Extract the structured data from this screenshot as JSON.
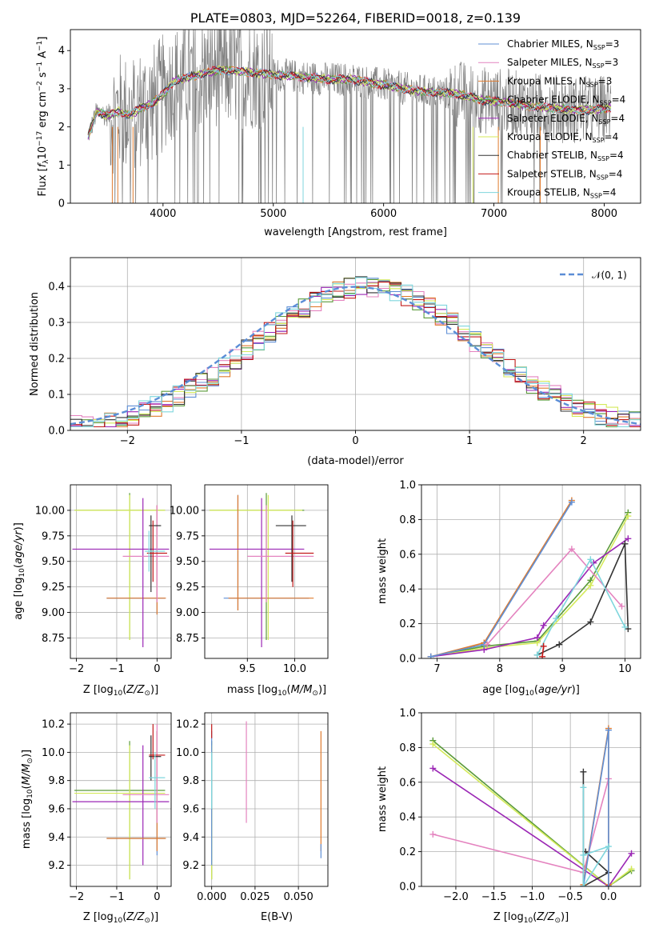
{
  "chart_data": [
    {
      "type": "line",
      "title": "PLATE=0803, MJD=52264, FIBERID=0018, z=0.139",
      "xlabel": "wavelength [Angstrom, rest frame]",
      "ylabel": "Flux [f_λ 10^-17 erg cm^-2 s^-1 A^-1]",
      "xlim": [
        3160,
        8330
      ],
      "ylim": [
        0,
        4.55
      ],
      "xticks": [
        "4000",
        "5000",
        "6000",
        "7000",
        "8000"
      ],
      "yticks": [
        "0",
        "1",
        "2",
        "3",
        "4"
      ],
      "grid": false,
      "legend_position": "right",
      "series": [
        {
          "name": "Chabrier MILES, N_SSP=3",
          "color": "#5f8fd6"
        },
        {
          "name": "Salpeter MILES, N_SSP=3",
          "color": "#e483bf"
        },
        {
          "name": "Kroupa MILES, N_SSP=3",
          "color": "#e07b2e"
        },
        {
          "name": "Chabrier ELODIE, N_SSP=4",
          "color": "#5a9a3a"
        },
        {
          "name": "Salpeter ELODIE, N_SSP=4",
          "color": "#9b27b5"
        },
        {
          "name": "Kroupa ELODIE, N_SSP=4",
          "color": "#d4ea5a"
        },
        {
          "name": "Chabrier STELIB, N_SSP=4",
          "color": "#333333"
        },
        {
          "name": "Salpeter STELIB, N_SSP=4",
          "color": "#c21a1a"
        },
        {
          "name": "Kroupa STELIB, N_SSP=4",
          "color": "#7fd6dd"
        }
      ],
      "data_color": "#808080",
      "continuum": {
        "x": [
          3320,
          3400,
          3500,
          3600,
          3700,
          3800,
          3900,
          4000,
          4100,
          4300,
          4500,
          4700,
          4900,
          5100,
          5300,
          5500,
          5700,
          5900,
          6100,
          6300,
          6500,
          6700,
          6900,
          7100,
          7300,
          7500,
          7700,
          7900,
          8050
        ],
        "y": [
          1.75,
          2.4,
          2.3,
          2.4,
          2.3,
          2.5,
          2.6,
          2.85,
          3.2,
          3.35,
          3.5,
          3.45,
          3.4,
          3.35,
          3.3,
          3.25,
          3.25,
          3.15,
          3.05,
          2.95,
          2.9,
          2.85,
          2.7,
          2.65,
          2.55,
          2.5,
          2.45,
          2.45,
          2.5
        ]
      }
    },
    {
      "type": "histogram",
      "xlabel": "(data-model)/error",
      "ylabel": "Normed distribution",
      "xlim": [
        -2.5,
        2.5
      ],
      "ylim": [
        0,
        0.48
      ],
      "xticks": [
        "−2",
        "−1",
        "0",
        "1",
        "2"
      ],
      "yticks": [
        "0.0",
        "0.1",
        "0.2",
        "0.3",
        "0.4"
      ],
      "grid": true,
      "legend_position": "top-right",
      "reference": {
        "name": "𝒩(0, 1)",
        "mean": 0,
        "sigma": 1,
        "color": "#5b8dd6"
      },
      "bin_width": 0.1
    },
    {
      "type": "scatter",
      "xlabel": "Z [log10(Z/Z⊙)]",
      "ylabel": "age  [log10(age/yr)]",
      "xlim": [
        -2.15,
        0.35
      ],
      "ylim": [
        8.55,
        10.25
      ],
      "xticks": [
        "−2",
        "−1",
        "0"
      ],
      "yticks": [
        "8.75",
        "9.00",
        "9.25",
        "9.50",
        "9.75",
        "10.00"
      ],
      "grid": true,
      "points": [
        {
          "color": "#5a9a3a",
          "z": -0.68,
          "age": 10.0,
          "zerr": [
            -2.05,
            0.2
          ],
          "ageerr": [
            8.73,
            10.17
          ]
        },
        {
          "color": "#d4ea5a",
          "z": -0.68,
          "age": 10.0,
          "zerr": [
            -2.05,
            0.2
          ],
          "ageerr": [
            8.73,
            10.15
          ]
        },
        {
          "color": "#5f8fd6",
          "z": 0.0,
          "age": 9.14,
          "zerr": [
            -1.25,
            0.2
          ],
          "ageerr": [
            8.98,
            10.05
          ]
        },
        {
          "color": "#e07b2e",
          "z": 0.0,
          "age": 9.14,
          "zerr": [
            -1.25,
            0.22
          ],
          "ageerr": [
            8.98,
            10.05
          ]
        },
        {
          "color": "#9b27b5",
          "z": -0.35,
          "age": 9.62,
          "zerr": [
            -2.1,
            0.3
          ],
          "ageerr": [
            8.66,
            10.12
          ]
        },
        {
          "color": "#e483bf",
          "z": 0.0,
          "age": 9.55,
          "zerr": [
            -0.85,
            0.3
          ],
          "ageerr": [
            9.1,
            10.05
          ]
        },
        {
          "color": "#333333",
          "z": -0.15,
          "age": 9.85,
          "zerr": [
            -0.2,
            0.1
          ],
          "ageerr": [
            9.2,
            9.95
          ]
        },
        {
          "color": "#c21a1a",
          "z": -0.1,
          "age": 9.58,
          "zerr": [
            -0.25,
            0.25
          ],
          "ageerr": [
            9.3,
            9.9
          ]
        },
        {
          "color": "#7fd6dd",
          "z": -0.2,
          "age": 9.6,
          "zerr": [
            -0.3,
            0.2
          ],
          "ageerr": [
            9.4,
            9.8
          ]
        }
      ]
    },
    {
      "type": "scatter",
      "xlabel": "mass [log10(M/M⊙)]",
      "ylabel": "",
      "xlim": [
        9.05,
        10.35
      ],
      "ylim": [
        8.55,
        10.25
      ],
      "xticks": [
        "9.5",
        "10.0"
      ],
      "yticks": [
        "8.75",
        "9.00",
        "9.25",
        "9.50",
        "9.75",
        "10.00"
      ],
      "grid": true,
      "points": [
        {
          "color": "#5a9a3a",
          "m": 9.7,
          "age": 10.0,
          "merr": [
            9.1,
            10.1
          ],
          "ageerr": [
            8.73,
            10.17
          ]
        },
        {
          "color": "#d4ea5a",
          "m": 9.72,
          "age": 10.0,
          "merr": [
            9.1,
            10.08
          ],
          "ageerr": [
            8.73,
            10.15
          ]
        },
        {
          "color": "#5f8fd6",
          "m": 9.4,
          "age": 9.14,
          "merr": [
            9.25,
            10.15
          ],
          "ageerr": [
            9.02,
            10.15
          ]
        },
        {
          "color": "#e07b2e",
          "m": 9.4,
          "age": 9.14,
          "merr": [
            9.3,
            10.2
          ],
          "ageerr": [
            9.02,
            10.15
          ]
        },
        {
          "color": "#9b27b5",
          "m": 9.65,
          "age": 9.62,
          "merr": [
            9.1,
            10.1
          ],
          "ageerr": [
            8.66,
            10.12
          ]
        },
        {
          "color": "#e483bf",
          "m": 9.7,
          "age": 9.55,
          "merr": [
            9.5,
            10.2
          ],
          "ageerr": [
            9.1,
            10.05
          ]
        },
        {
          "color": "#333333",
          "m": 9.97,
          "age": 9.85,
          "merr": [
            9.8,
            10.12
          ],
          "ageerr": [
            9.3,
            9.95
          ]
        },
        {
          "color": "#c21a1a",
          "m": 9.98,
          "age": 9.58,
          "merr": [
            9.9,
            10.2
          ],
          "ageerr": [
            9.25,
            9.9
          ]
        }
      ]
    },
    {
      "type": "line",
      "xlabel": "age  [log10(age/yr)]",
      "ylabel": "mass weight",
      "xlim": [
        6.75,
        10.25
      ],
      "ylim": [
        0,
        1.0
      ],
      "xticks": [
        "7",
        "8",
        "9",
        "10"
      ],
      "yticks": [
        "0.0",
        "0.2",
        "0.4",
        "0.6",
        "0.8",
        "1.0"
      ],
      "grid": true,
      "series": [
        {
          "color": "#5a9a3a",
          "x": [
            6.9,
            7.75,
            8.6,
            9.45,
            10.05
          ],
          "y": [
            0.01,
            0.07,
            0.1,
            0.45,
            0.84
          ]
        },
        {
          "color": "#d4ea5a",
          "x": [
            6.9,
            7.75,
            8.6,
            9.45,
            10.05
          ],
          "y": [
            0.01,
            0.06,
            0.09,
            0.42,
            0.82
          ]
        },
        {
          "color": "#9b27b5",
          "x": [
            6.9,
            7.75,
            8.6,
            8.7,
            9.5,
            10.05
          ],
          "y": [
            0.01,
            0.05,
            0.12,
            0.19,
            0.55,
            0.69
          ]
        },
        {
          "color": "#e07b2e",
          "x": [
            6.9,
            7.75,
            9.15
          ],
          "y": [
            0.01,
            0.09,
            0.91
          ]
        },
        {
          "color": "#5f8fd6",
          "x": [
            6.9,
            7.75,
            9.15
          ],
          "y": [
            0.01,
            0.08,
            0.9
          ]
        },
        {
          "color": "#e483bf",
          "x": [
            7.8,
            9.15,
            9.95
          ],
          "y": [
            0.08,
            0.63,
            0.3
          ]
        },
        {
          "color": "#333333",
          "x": [
            8.6,
            8.95,
            9.45,
            10.0,
            10.05
          ],
          "y": [
            0.02,
            0.08,
            0.21,
            0.66,
            0.17
          ]
        },
        {
          "color": "#7fd6dd",
          "x": [
            8.6,
            8.9,
            9.45,
            10.0
          ],
          "y": [
            0.02,
            0.23,
            0.57,
            0.18
          ]
        },
        {
          "color": "#c21a1a",
          "x": [
            8.68,
            8.7
          ],
          "y": [
            0.01,
            0.07
          ]
        }
      ]
    },
    {
      "type": "scatter",
      "xlabel": "Z [log10(Z/Z⊙)]",
      "ylabel": "mass [log10(M/M⊙)]",
      "xlim": [
        -2.15,
        0.35
      ],
      "ylim": [
        9.05,
        10.28
      ],
      "xticks": [
        "−2",
        "−1",
        "0"
      ],
      "yticks": [
        "9.2",
        "9.4",
        "9.6",
        "9.8",
        "10.0",
        "10.2"
      ],
      "grid": true,
      "points": [
        {
          "color": "#5a9a3a",
          "z": -0.68,
          "m": 9.73,
          "zerr": [
            -2.05,
            0.2
          ],
          "merr": [
            9.1,
            10.08
          ]
        },
        {
          "color": "#d4ea5a",
          "z": -0.68,
          "m": 9.71,
          "zerr": [
            -2.05,
            0.2
          ],
          "merr": [
            9.1,
            10.05
          ]
        },
        {
          "color": "#9b27b5",
          "z": -0.35,
          "m": 9.65,
          "zerr": [
            -2.1,
            0.3
          ],
          "merr": [
            9.2,
            10.05
          ]
        },
        {
          "color": "#5f8fd6",
          "z": 0.0,
          "m": 9.39,
          "zerr": [
            -1.25,
            0.2
          ],
          "merr": [
            9.27,
            10.15
          ]
        },
        {
          "color": "#e07b2e",
          "z": 0.0,
          "m": 9.39,
          "zerr": [
            -1.25,
            0.22
          ],
          "merr": [
            9.3,
            10.15
          ]
        },
        {
          "color": "#e483bf",
          "z": 0.0,
          "m": 9.7,
          "zerr": [
            -0.85,
            0.3
          ],
          "merr": [
            9.5,
            10.2
          ]
        },
        {
          "color": "#333333",
          "z": -0.15,
          "m": 9.97,
          "zerr": [
            -0.2,
            0.1
          ],
          "merr": [
            9.8,
            10.12
          ]
        },
        {
          "color": "#c21a1a",
          "z": -0.1,
          "m": 9.98,
          "zerr": [
            -0.2,
            0.2
          ],
          "merr": [
            9.95,
            10.2
          ]
        },
        {
          "color": "#7fd6dd",
          "z": -0.05,
          "m": 9.82,
          "zerr": [
            -0.2,
            0.2
          ],
          "merr": [
            9.6,
            10.0
          ]
        }
      ]
    },
    {
      "type": "scatter",
      "xlabel": "E(B-V)",
      "ylabel": "",
      "xlim": [
        -0.004,
        0.067
      ],
      "ylim": [
        9.05,
        10.28
      ],
      "xticks": [
        "0.000",
        "0.025",
        "0.050"
      ],
      "yticks": [
        "9.2",
        "9.4",
        "9.6",
        "9.8",
        "10.0",
        "10.2"
      ],
      "grid": true,
      "points": [
        {
          "color": "#5a9a3a",
          "e": 0.0,
          "m": 9.73,
          "merr": [
            9.1,
            10.08
          ]
        },
        {
          "color": "#d4ea5a",
          "e": 0.0,
          "m": 9.71,
          "merr": [
            9.1,
            10.05
          ]
        },
        {
          "color": "#5f8fd6",
          "e": 0.0,
          "m": 9.5,
          "merr": [
            9.2,
            10.15
          ]
        },
        {
          "color": "#c21a1a",
          "e": 0.0,
          "m": 10.15,
          "merr": [
            10.1,
            10.2
          ]
        },
        {
          "color": "#7fd6dd",
          "e": 0.0,
          "m": 9.8,
          "merr": [
            9.6,
            10.0
          ]
        },
        {
          "color": "#e483bf",
          "e": 0.02,
          "m": 9.8,
          "merr": [
            9.5,
            10.22
          ]
        },
        {
          "color": "#e07b2e",
          "e": 0.063,
          "m": 9.7,
          "merr": [
            9.3,
            10.15
          ]
        },
        {
          "color": "#5f8fd6",
          "e": 0.063,
          "m": 9.3,
          "merr": [
            9.25,
            9.35
          ]
        }
      ]
    },
    {
      "type": "line",
      "xlabel": "Z [log10(Z/Z⊙)]",
      "ylabel": "mass weight",
      "xlim": [
        -2.45,
        0.42
      ],
      "ylim": [
        0,
        1.0
      ],
      "xticks": [
        "−2.0",
        "−1.5",
        "−1.0",
        "−0.5",
        "0.0"
      ],
      "yticks": [
        "0.0",
        "0.2",
        "0.4",
        "0.6",
        "0.8",
        "1.0"
      ],
      "grid": true,
      "series": [
        {
          "color": "#5a9a3a",
          "x": [
            -2.3,
            0.0,
            0.3
          ],
          "y": [
            0.84,
            0.0,
            0.09
          ]
        },
        {
          "color": "#d4ea5a",
          "x": [
            -2.3,
            0.0,
            0.3
          ],
          "y": [
            0.82,
            0.0,
            0.1
          ]
        },
        {
          "color": "#9b27b5",
          "x": [
            -2.3,
            0.0,
            0.3
          ],
          "y": [
            0.68,
            0.0,
            0.19
          ]
        },
        {
          "color": "#e483bf",
          "x": [
            -2.3,
            -0.33,
            0.0
          ],
          "y": [
            0.3,
            0.08,
            0.62
          ]
        },
        {
          "color": "#333333",
          "x": [
            -0.33,
            -0.33,
            0.0,
            -0.3
          ],
          "y": [
            0.66,
            0.0,
            0.08,
            0.2
          ]
        },
        {
          "color": "#e07b2e",
          "x": [
            -0.33,
            0.0,
            0.0
          ],
          "y": [
            0.01,
            0.91,
            0.01
          ]
        },
        {
          "color": "#5f8fd6",
          "x": [
            -0.33,
            0.0,
            0.0
          ],
          "y": [
            0.0,
            0.9,
            0.0
          ]
        },
        {
          "color": "#7fd6dd",
          "x": [
            -0.33,
            -0.33,
            0.0,
            -0.33
          ],
          "y": [
            0.57,
            0.0,
            0.23,
            0.18
          ]
        }
      ]
    }
  ]
}
